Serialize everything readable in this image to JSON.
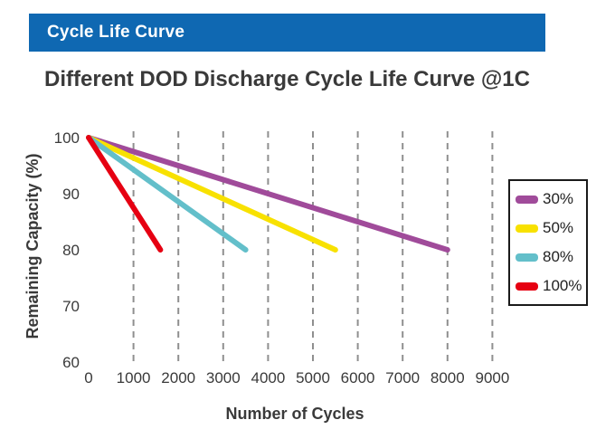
{
  "header": {
    "banner": "Cycle Life Curve",
    "banner_color": "#0f68b2",
    "title": "Different DOD Discharge Cycle Life Curve @1C"
  },
  "chart_data": {
    "type": "line",
    "title": "Different DOD Discharge Cycle Life Curve @1C",
    "xlabel": "Number of Cycles",
    "ylabel": "Remaining Capacity (%)",
    "xlim": [
      0,
      9500
    ],
    "ylim": [
      60,
      101
    ],
    "xticks": [
      0,
      1000,
      2000,
      3000,
      4000,
      5000,
      6000,
      7000,
      8000,
      9000
    ],
    "yticks": [
      100,
      90,
      80,
      70,
      60
    ],
    "grid": "vertical-dashed",
    "grid_color": "#8f8f8f",
    "legend_position": "right",
    "legend_border_color": "#1a1a1a",
    "series": [
      {
        "name": "30%",
        "color": "#a04b9a",
        "points": [
          [
            0,
            100
          ],
          [
            8000,
            80
          ]
        ]
      },
      {
        "name": "50%",
        "color": "#f8e100",
        "points": [
          [
            0,
            100
          ],
          [
            5500,
            80
          ]
        ]
      },
      {
        "name": "80%",
        "color": "#63bfca",
        "points": [
          [
            0,
            100
          ],
          [
            3500,
            80
          ]
        ]
      },
      {
        "name": "100%",
        "color": "#e60012",
        "points": [
          [
            0,
            100
          ],
          [
            1600,
            80
          ]
        ]
      }
    ]
  }
}
